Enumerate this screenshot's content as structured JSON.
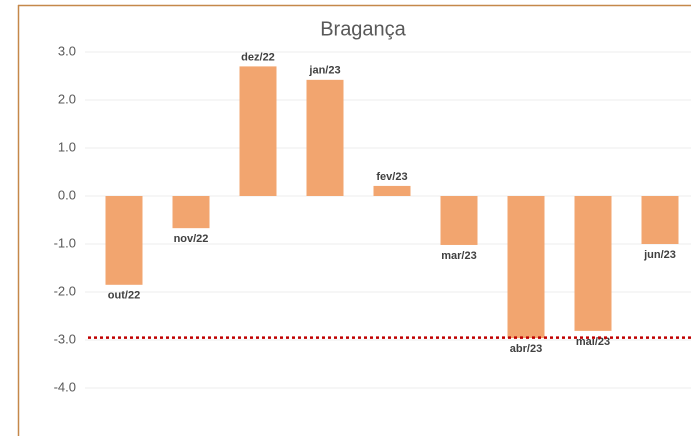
{
  "chart_data": {
    "type": "bar",
    "title": "Bragança",
    "categories": [
      "out/22",
      "nov/22",
      "dez/22",
      "jan/23",
      "fev/23",
      "mar/23",
      "abr/23",
      "mai/23",
      "jun/23"
    ],
    "values": [
      -1.85,
      -0.67,
      2.7,
      2.42,
      0.21,
      -1.02,
      -2.96,
      -2.81,
      -1.0
    ],
    "color": "#f2a56f",
    "ylim": [
      -4,
      3
    ],
    "yticks": [
      {
        "value": 3,
        "label": "3.0"
      },
      {
        "value": 2,
        "label": "2.0"
      },
      {
        "value": 1,
        "label": "1.0"
      },
      {
        "value": 0,
        "label": "0.0"
      },
      {
        "value": -1,
        "label": "-1.0"
      },
      {
        "value": -2,
        "label": "-2.0"
      },
      {
        "value": -3,
        "label": "-3.0"
      },
      {
        "value": -4,
        "label": "-4.0"
      }
    ],
    "grid": true,
    "reference_line": {
      "value": -2.95,
      "color": "#c00000"
    }
  }
}
